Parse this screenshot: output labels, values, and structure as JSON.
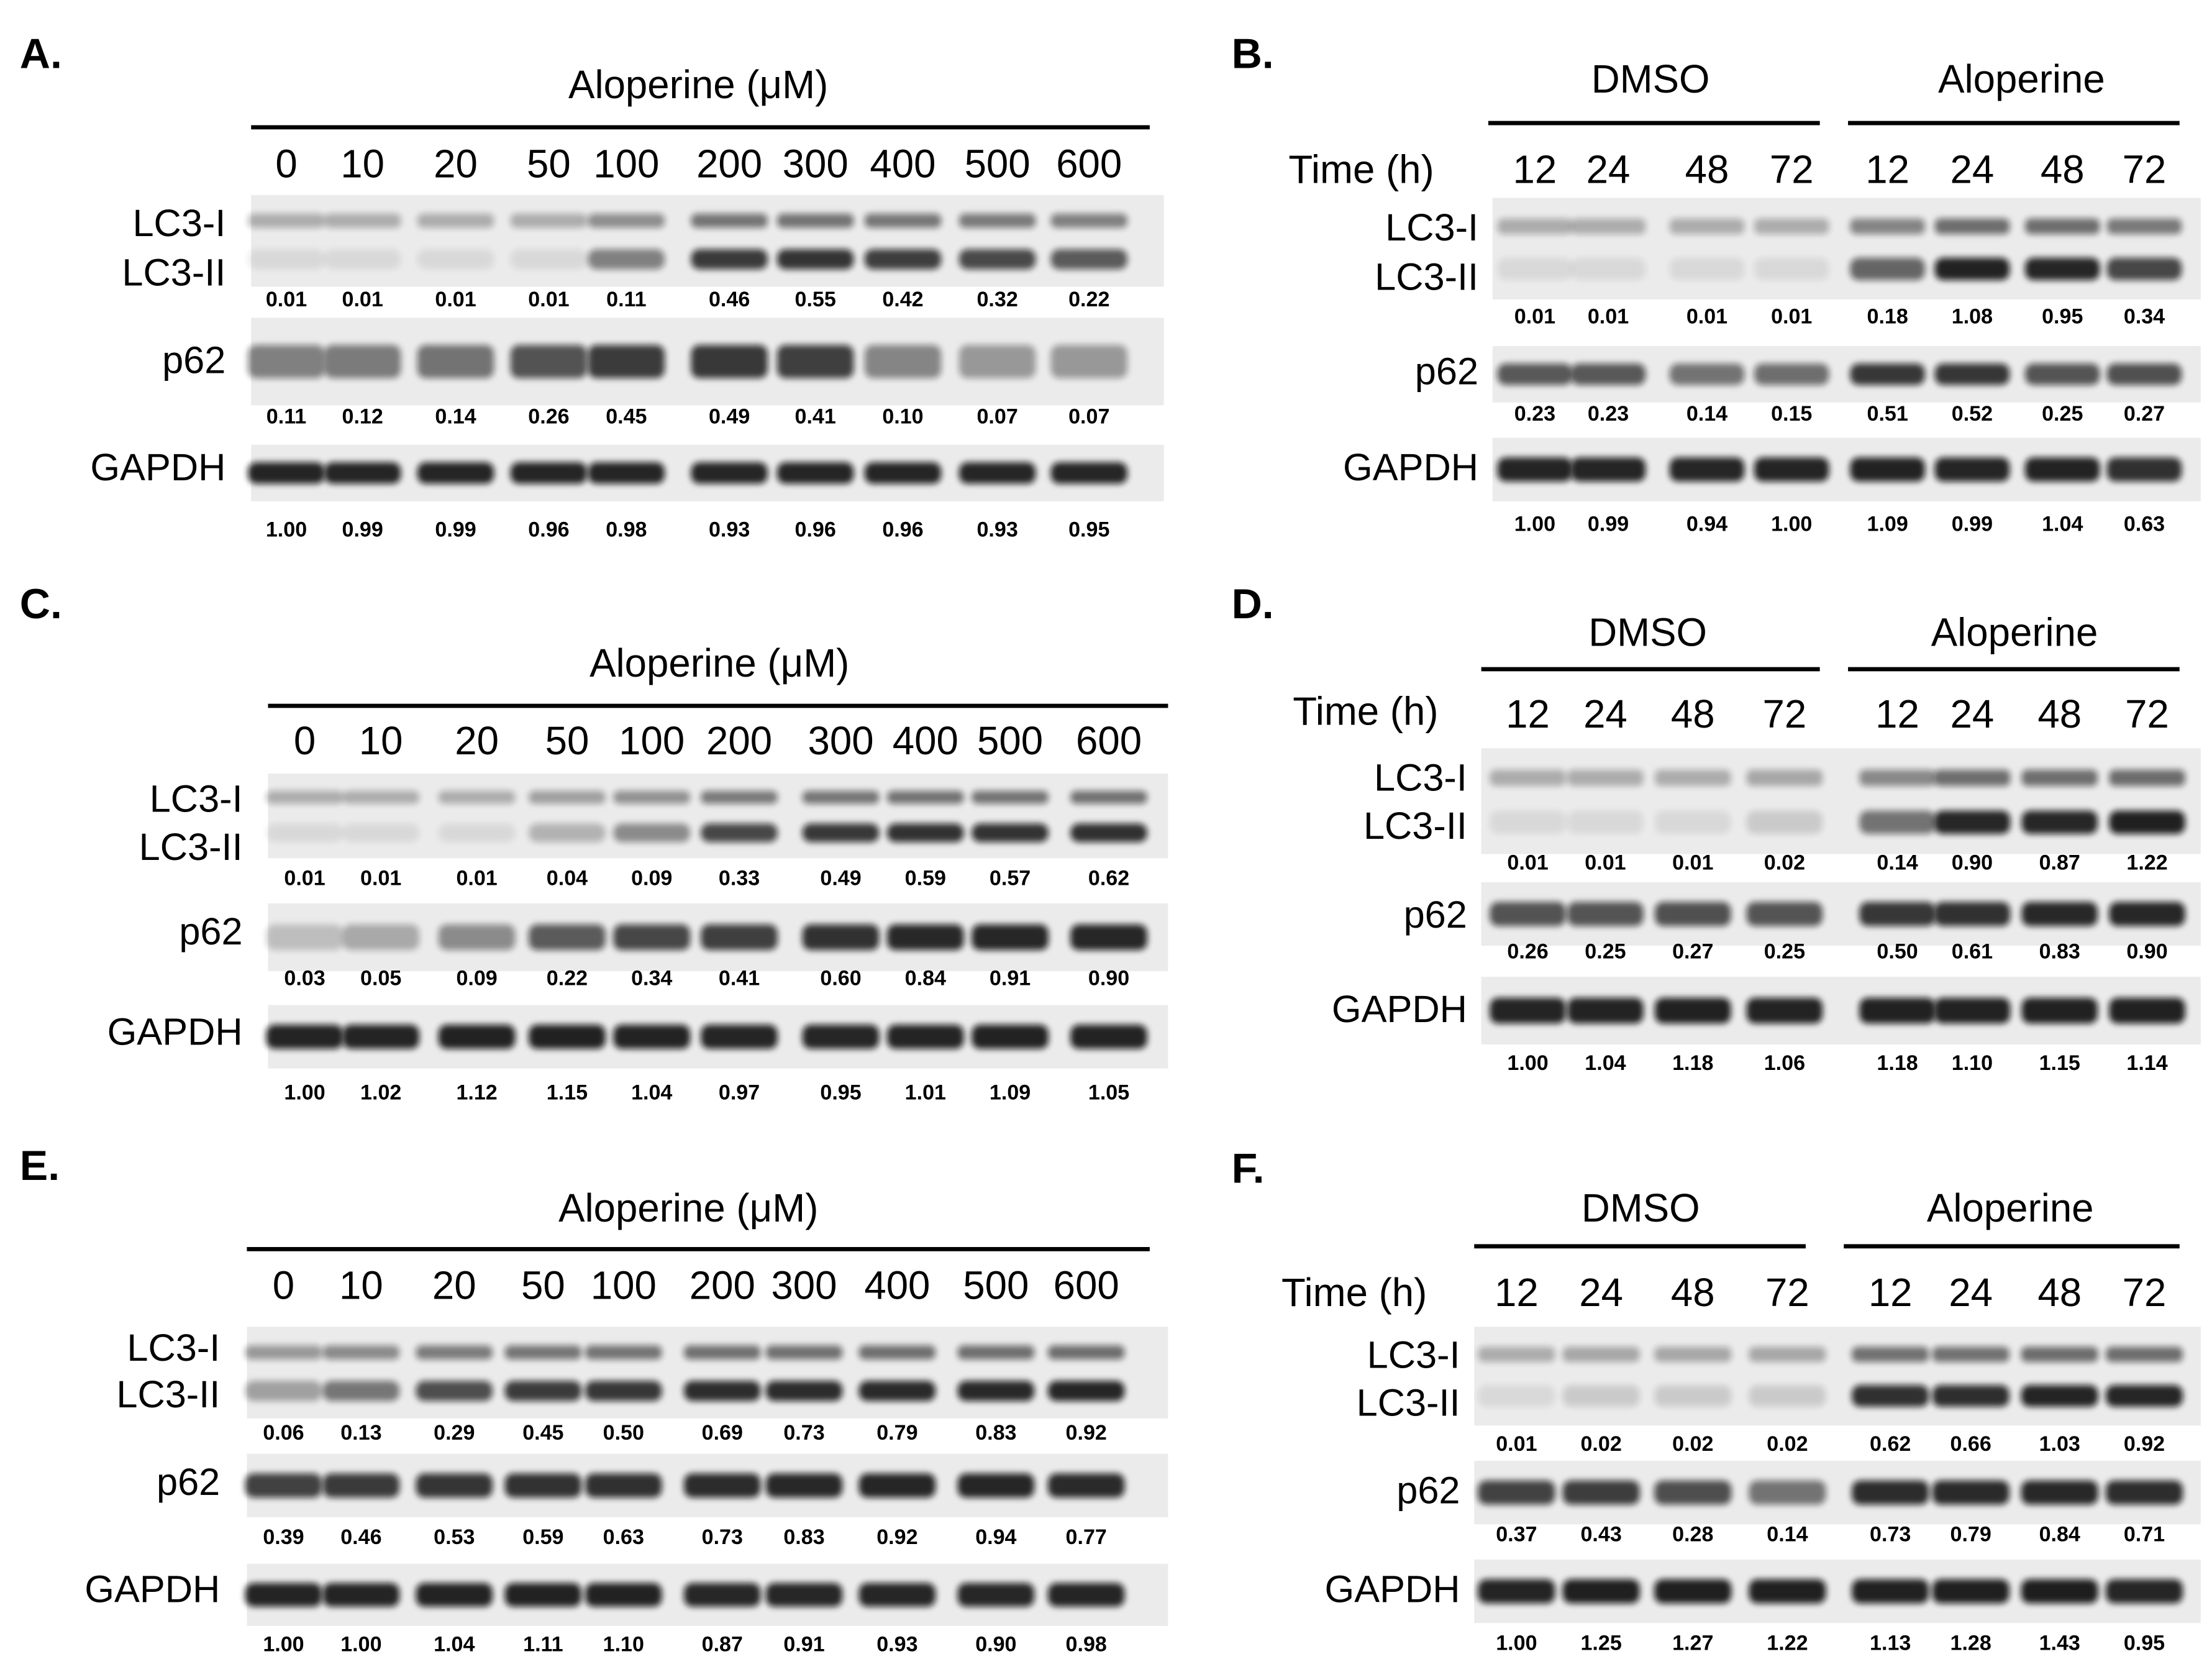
{
  "panels": [
    {
      "label": "A.",
      "header": "Aloperine (μM)",
      "lanes": [
        "0",
        "10",
        "20",
        "50",
        "100",
        "200",
        "300",
        "400",
        "500",
        "600"
      ],
      "rows": [
        {
          "names": [
            "LC3-I",
            "LC3-II"
          ],
          "values": [
            "0.01",
            "0.01",
            "0.01",
            "0.01",
            "0.11",
            "0.46",
            "0.55",
            "0.42",
            "0.32",
            "0.22"
          ]
        },
        {
          "names": [
            "p62"
          ],
          "values": [
            "0.11",
            "0.12",
            "0.14",
            "0.26",
            "0.45",
            "0.49",
            "0.41",
            "0.10",
            "0.07",
            "0.07"
          ]
        },
        {
          "names": [
            "GAPDH"
          ],
          "values": [
            "1.00",
            "0.99",
            "0.99",
            "0.96",
            "0.98",
            "0.93",
            "0.96",
            "0.96",
            "0.93",
            "0.95"
          ]
        }
      ]
    },
    {
      "label": "B.",
      "groups": [
        "DMSO",
        "Aloperine"
      ],
      "time_label": "Time (h)",
      "lanes": [
        "12",
        "24",
        "48",
        "72",
        "12",
        "24",
        "48",
        "72"
      ],
      "rows": [
        {
          "names": [
            "LC3-I",
            "LC3-II"
          ],
          "values": [
            "0.01",
            "0.01",
            "0.01",
            "0.01",
            "0.18",
            "1.08",
            "0.95",
            "0.34"
          ]
        },
        {
          "names": [
            "p62"
          ],
          "values": [
            "0.23",
            "0.23",
            "0.14",
            "0.15",
            "0.51",
            "0.52",
            "0.25",
            "0.27"
          ]
        },
        {
          "names": [
            "GAPDH"
          ],
          "values": [
            "1.00",
            "0.99",
            "0.94",
            "1.00",
            "1.09",
            "0.99",
            "1.04",
            "0.63"
          ]
        }
      ]
    },
    {
      "label": "C.",
      "header": "Aloperine (μM)",
      "lanes": [
        "0",
        "10",
        "20",
        "50",
        "100",
        "200",
        "300",
        "400",
        "500",
        "600"
      ],
      "rows": [
        {
          "names": [
            "LC3-I",
            "LC3-II"
          ],
          "values": [
            "0.01",
            "0.01",
            "0.01",
            "0.04",
            "0.09",
            "0.33",
            "0.49",
            "0.59",
            "0.57",
            "0.62"
          ]
        },
        {
          "names": [
            "p62"
          ],
          "values": [
            "0.03",
            "0.05",
            "0.09",
            "0.22",
            "0.34",
            "0.41",
            "0.60",
            "0.84",
            "0.91",
            "0.90"
          ]
        },
        {
          "names": [
            "GAPDH"
          ],
          "values": [
            "1.00",
            "1.02",
            "1.12",
            "1.15",
            "1.04",
            "0.97",
            "0.95",
            "1.01",
            "1.09",
            "1.05"
          ]
        }
      ]
    },
    {
      "label": "D.",
      "groups": [
        "DMSO",
        "Aloperine"
      ],
      "time_label": "Time (h)",
      "lanes": [
        "12",
        "24",
        "48",
        "72",
        "12",
        "24",
        "48",
        "72"
      ],
      "rows": [
        {
          "names": [
            "LC3-I",
            "LC3-II"
          ],
          "values": [
            "0.01",
            "0.01",
            "0.01",
            "0.02",
            "0.14",
            "0.90",
            "0.87",
            "1.22"
          ]
        },
        {
          "names": [
            "p62"
          ],
          "values": [
            "0.26",
            "0.25",
            "0.27",
            "0.25",
            "0.50",
            "0.61",
            "0.83",
            "0.90"
          ]
        },
        {
          "names": [
            "GAPDH"
          ],
          "values": [
            "1.00",
            "1.04",
            "1.18",
            "1.06",
            "1.18",
            "1.10",
            "1.15",
            "1.14"
          ]
        }
      ]
    },
    {
      "label": "E.",
      "header": "Aloperine (μM)",
      "lanes": [
        "0",
        "10",
        "20",
        "50",
        "100",
        "200",
        "300",
        "400",
        "500",
        "600"
      ],
      "rows": [
        {
          "names": [
            "LC3-I",
            "LC3-II"
          ],
          "values": [
            "0.06",
            "0.13",
            "0.29",
            "0.45",
            "0.50",
            "0.69",
            "0.73",
            "0.79",
            "0.83",
            "0.92"
          ]
        },
        {
          "names": [
            "p62"
          ],
          "values": [
            "0.39",
            "0.46",
            "0.53",
            "0.59",
            "0.63",
            "0.73",
            "0.83",
            "0.92",
            "0.94",
            "0.77"
          ]
        },
        {
          "names": [
            "GAPDH"
          ],
          "values": [
            "1.00",
            "1.00",
            "1.04",
            "1.11",
            "1.10",
            "0.87",
            "0.91",
            "0.93",
            "0.90",
            "0.98"
          ]
        }
      ]
    },
    {
      "label": "F.",
      "groups": [
        "DMSO",
        "Aloperine"
      ],
      "time_label": "Time (h)",
      "lanes": [
        "12",
        "24",
        "48",
        "72",
        "12",
        "24",
        "48",
        "72"
      ],
      "rows": [
        {
          "names": [
            "LC3-I",
            "LC3-II"
          ],
          "values": [
            "0.01",
            "0.02",
            "0.02",
            "0.02",
            "0.62",
            "0.66",
            "1.03",
            "0.92"
          ]
        },
        {
          "names": [
            "p62"
          ],
          "values": [
            "0.37",
            "0.43",
            "0.28",
            "0.14",
            "0.73",
            "0.79",
            "0.84",
            "0.71"
          ]
        },
        {
          "names": [
            "GAPDH"
          ],
          "values": [
            "1.00",
            "1.25",
            "1.27",
            "1.22",
            "1.13",
            "1.28",
            "1.43",
            "0.95"
          ]
        }
      ]
    }
  ]
}
